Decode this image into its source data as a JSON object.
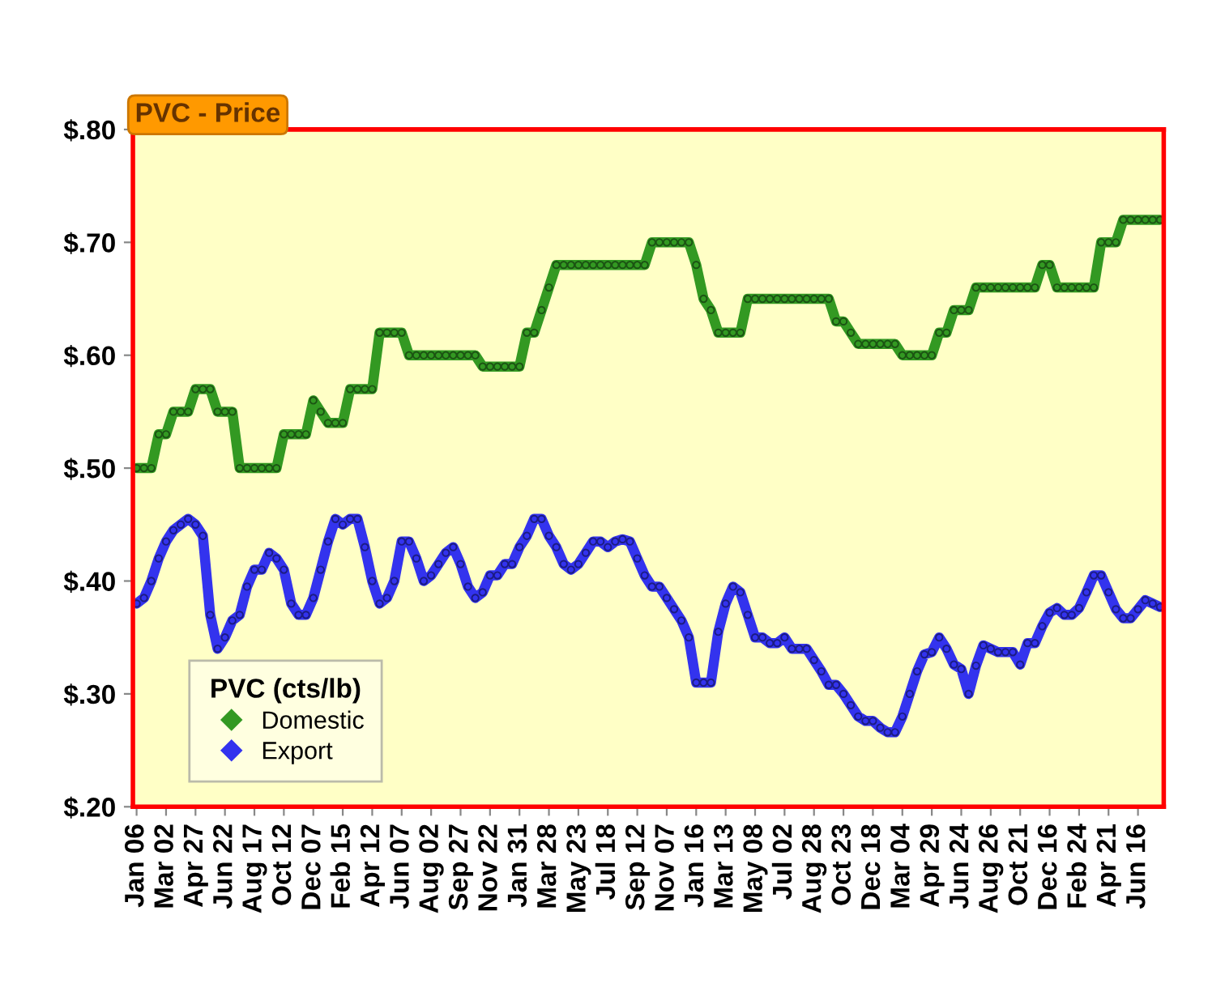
{
  "chart_data": {
    "type": "line",
    "title": "PVC - Price",
    "legend_title": "PVC (cts/lb)",
    "categories": [
      "Jan 06",
      null,
      null,
      null,
      "Mar 02",
      null,
      null,
      null,
      "Apr 27",
      null,
      null,
      null,
      "Jun 22",
      null,
      null,
      null,
      "Aug 17",
      null,
      null,
      null,
      "Oct 12",
      null,
      null,
      null,
      "Dec 07",
      null,
      null,
      null,
      "Feb 15",
      null,
      null,
      null,
      "Apr 12",
      null,
      null,
      null,
      "Jun 07",
      null,
      null,
      null,
      "Aug 02",
      null,
      null,
      null,
      "Sep 27",
      null,
      null,
      null,
      "Nov 22",
      null,
      null,
      null,
      "Jan 31",
      null,
      null,
      null,
      "Mar 28",
      null,
      null,
      null,
      "May 23",
      null,
      null,
      null,
      "Jul 18",
      null,
      null,
      null,
      "Sep 12",
      null,
      null,
      null,
      "Nov 07",
      null,
      null,
      null,
      "Jan 16",
      null,
      null,
      null,
      "Mar 13",
      null,
      null,
      null,
      "May 08",
      null,
      null,
      null,
      "Jul 02",
      null,
      null,
      null,
      "Aug 28",
      null,
      null,
      null,
      "Oct 23",
      null,
      null,
      null,
      "Dec 18",
      null,
      null,
      null,
      "Mar 04",
      null,
      null,
      null,
      "Apr 29",
      null,
      null,
      null,
      "Jun 24",
      null,
      null,
      null,
      "Aug 26",
      null,
      null,
      null,
      "Oct 21",
      null,
      null,
      null,
      "Dec 16",
      null,
      null,
      null,
      "Feb 24",
      null,
      null,
      null,
      "Apr 21",
      null,
      null,
      null,
      "Jun 16",
      null,
      null,
      null
    ],
    "series": [
      {
        "name": "Domestic",
        "color": "#339922",
        "values": [
          0.5,
          0.5,
          0.5,
          0.53,
          0.53,
          0.55,
          0.55,
          0.55,
          0.57,
          0.57,
          0.57,
          0.55,
          0.55,
          0.55,
          0.5,
          0.5,
          0.5,
          0.5,
          0.5,
          0.5,
          0.53,
          0.53,
          0.53,
          0.53,
          0.56,
          0.55,
          0.54,
          0.54,
          0.54,
          0.57,
          0.57,
          0.57,
          0.57,
          0.62,
          0.62,
          0.62,
          0.62,
          0.6,
          0.6,
          0.6,
          0.6,
          0.6,
          0.6,
          0.6,
          0.6,
          0.6,
          0.6,
          0.59,
          0.59,
          0.59,
          0.59,
          0.59,
          0.59,
          0.62,
          0.62,
          0.64,
          0.66,
          0.68,
          0.68,
          0.68,
          0.68,
          0.68,
          0.68,
          0.68,
          0.68,
          0.68,
          0.68,
          0.68,
          0.68,
          0.68,
          0.7,
          0.7,
          0.7,
          0.7,
          0.7,
          0.7,
          0.68,
          0.65,
          0.64,
          0.62,
          0.62,
          0.62,
          0.62,
          0.65,
          0.65,
          0.65,
          0.65,
          0.65,
          0.65,
          0.65,
          0.65,
          0.65,
          0.65,
          0.65,
          0.65,
          0.63,
          0.63,
          0.62,
          0.61,
          0.61,
          0.61,
          0.61,
          0.61,
          0.61,
          0.6,
          0.6,
          0.6,
          0.6,
          0.6,
          0.62,
          0.62,
          0.64,
          0.64,
          0.64,
          0.66,
          0.66,
          0.66,
          0.66,
          0.66,
          0.66,
          0.66,
          0.66,
          0.66,
          0.68,
          0.68,
          0.66,
          0.66,
          0.66,
          0.66,
          0.66,
          0.66,
          0.7,
          0.7,
          0.7,
          0.72,
          0.72,
          0.72,
          0.72,
          0.72,
          0.72
        ]
      },
      {
        "name": "Export",
        "color": "#3333ee",
        "values": [
          0.38,
          0.385,
          0.4,
          0.42,
          0.435,
          0.445,
          0.45,
          0.455,
          0.45,
          0.44,
          0.37,
          0.34,
          0.35,
          0.365,
          0.37,
          0.395,
          0.41,
          0.41,
          0.425,
          0.42,
          0.41,
          0.38,
          0.37,
          0.37,
          0.385,
          0.41,
          0.435,
          0.455,
          0.45,
          0.455,
          0.455,
          0.43,
          0.4,
          0.38,
          0.385,
          0.4,
          0.435,
          0.435,
          0.42,
          0.4,
          0.405,
          0.415,
          0.425,
          0.43,
          0.415,
          0.395,
          0.385,
          0.39,
          0.405,
          0.405,
          0.415,
          0.415,
          0.43,
          0.44,
          0.455,
          0.455,
          0.44,
          0.43,
          0.415,
          0.41,
          0.415,
          0.425,
          0.435,
          0.435,
          0.43,
          0.435,
          0.437,
          0.435,
          0.42,
          0.405,
          0.395,
          0.395,
          0.385,
          0.375,
          0.365,
          0.35,
          0.31,
          0.31,
          0.31,
          0.355,
          0.38,
          0.395,
          0.39,
          0.37,
          0.35,
          0.35,
          0.345,
          0.345,
          0.35,
          0.34,
          0.34,
          0.34,
          0.33,
          0.32,
          0.308,
          0.308,
          0.3,
          0.29,
          0.28,
          0.276,
          0.276,
          0.27,
          0.266,
          0.266,
          0.28,
          0.3,
          0.32,
          0.335,
          0.337,
          0.35,
          0.34,
          0.326,
          0.322,
          0.3,
          0.325,
          0.343,
          0.34,
          0.337,
          0.337,
          0.337,
          0.326,
          0.345,
          0.345,
          0.36,
          0.372,
          0.376,
          0.37,
          0.37,
          0.376,
          0.39,
          0.405,
          0.405,
          0.39,
          0.375,
          0.367,
          0.367,
          0.375,
          0.383,
          0.38,
          0.377
        ]
      }
    ],
    "ylim": [
      0.2,
      0.8
    ],
    "yticks": [
      {
        "value": 0.2,
        "label": "$.20"
      },
      {
        "value": 0.3,
        "label": "$.30"
      },
      {
        "value": 0.4,
        "label": "$.40"
      },
      {
        "value": 0.5,
        "label": "$.50"
      },
      {
        "value": 0.6,
        "label": "$.60"
      },
      {
        "value": 0.7,
        "label": "$.70"
      },
      {
        "value": 0.8,
        "label": "$.80"
      }
    ],
    "grid": false,
    "legend": "bottom left",
    "marker": "circle",
    "line_style": "solid"
  }
}
